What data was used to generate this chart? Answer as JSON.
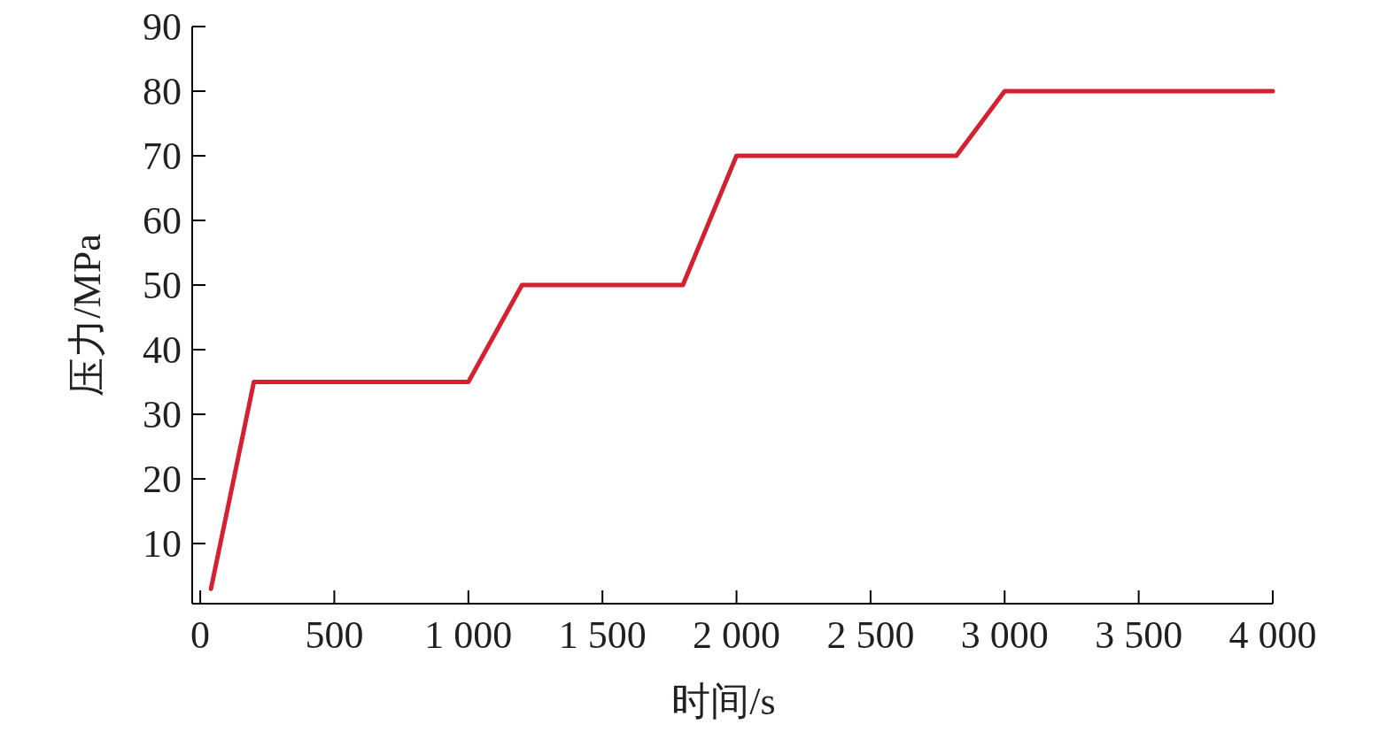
{
  "chart_data": {
    "type": "line",
    "xlabel": "时间/s",
    "ylabel": "压力/MPa",
    "x": [
      40,
      200,
      1000,
      1200,
      1800,
      2000,
      2820,
      3000,
      4000
    ],
    "series": [
      {
        "color": "#d42030",
        "values": [
          3,
          35,
          35,
          50,
          50,
          70,
          70,
          80,
          80
        ]
      }
    ],
    "xlim": [
      -30,
      4000
    ],
    "ylim": [
      0.7,
      90
    ],
    "xticks": [
      0,
      {
        "value": 500,
        "label": "500"
      },
      {
        "value": 1000,
        "label": "1 000"
      },
      {
        "value": 1500,
        "label": "1 500"
      },
      {
        "value": 2000,
        "label": "2 000"
      },
      {
        "value": 2500,
        "label": "2 500"
      },
      {
        "value": 3000,
        "label": "3 000"
      },
      {
        "value": 3500,
        "label": "3 500"
      },
      {
        "value": 4000,
        "label": "4 000"
      }
    ],
    "yticks": [
      10,
      20,
      30,
      40,
      50,
      60,
      70,
      80,
      90
    ],
    "grid": false,
    "marker": "none",
    "line_style": "solid"
  }
}
